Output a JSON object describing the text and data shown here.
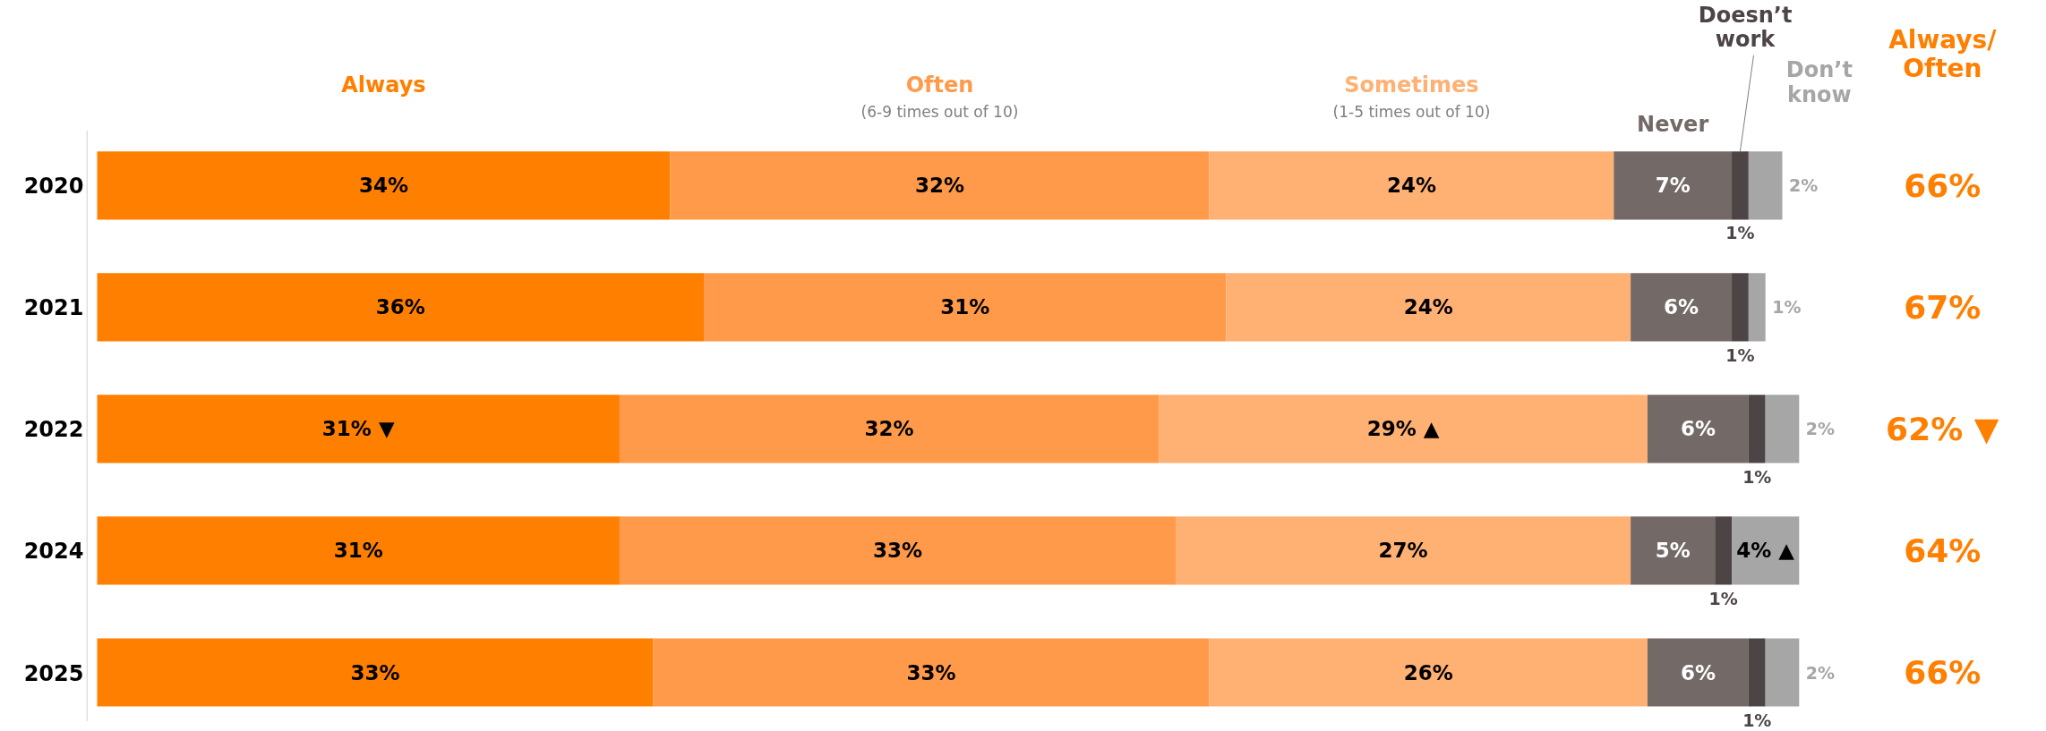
{
  "chart_data": {
    "type": "bar",
    "orientation": "horizontal",
    "stacked": true,
    "grid": false,
    "categories": [
      "2020",
      "2021",
      "2022",
      "2024",
      "2025"
    ],
    "series": [
      {
        "name": "Always",
        "color": "#ff7f00",
        "values": [
          34,
          36,
          31,
          31,
          33
        ],
        "value_labels": [
          "34%",
          "36%",
          "31% ▼",
          "31%",
          "33%"
        ]
      },
      {
        "name": "Often",
        "color": "#ff9a4a",
        "values": [
          32,
          31,
          32,
          33,
          33
        ],
        "value_labels": [
          "32%",
          "31%",
          "32%",
          "33%",
          "33%"
        ]
      },
      {
        "name": "Sometimes",
        "color": "#ffb073",
        "values": [
          24,
          24,
          29,
          27,
          26
        ],
        "value_labels": [
          "24%",
          "24%",
          "29% ▲",
          "27%",
          "26%"
        ]
      },
      {
        "name": "Never",
        "color": "#736966",
        "values": [
          7,
          6,
          6,
          5,
          6
        ],
        "value_labels": [
          "7%",
          "6%",
          "6%",
          "5%",
          "6%"
        ]
      },
      {
        "name": "Doesn’t work",
        "color": "#4d4446",
        "values": [
          1,
          1,
          1,
          1,
          1
        ],
        "value_labels": [
          "1%",
          "1%",
          "1%",
          "1%",
          "1%"
        ]
      },
      {
        "name": "Don’t know",
        "color": "#a6a6a6",
        "values": [
          2,
          1,
          2,
          4,
          2
        ],
        "value_labels": [
          "2%",
          "1%",
          "2%",
          "4% ▲",
          "2%"
        ]
      }
    ],
    "annotations": [
      "(6-9 times out of 10)",
      "(1-5 times out of 10)",
      "Always/ Often",
      "66%",
      "67%",
      "62% ▼",
      "64%",
      "66%"
    ]
  }
}
